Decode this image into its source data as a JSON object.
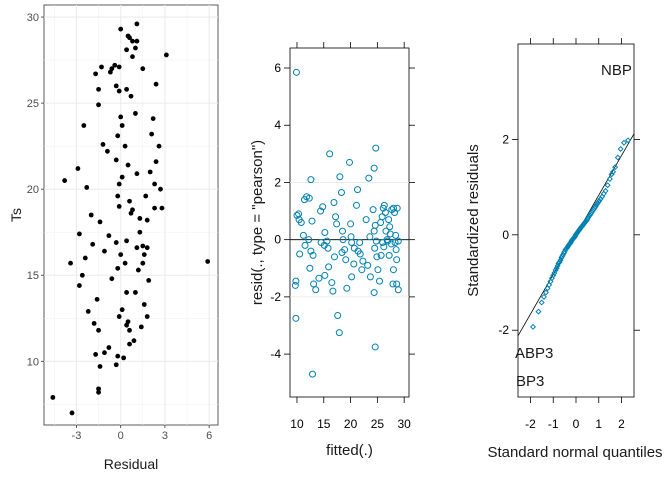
{
  "chart_data": [
    {
      "type": "scatter",
      "xlabel": "Residual",
      "ylabel": "Ts",
      "xlim": [
        -5.2,
        6.6
      ],
      "ylim": [
        6.3,
        30.7
      ],
      "xticks": [
        -3,
        0,
        3,
        6
      ],
      "yticks": [
        10,
        15,
        20,
        25,
        30
      ],
      "grid": true,
      "point_color": "#000000",
      "points": [
        [
          -4.6,
          7.9
        ],
        [
          -3.3,
          7.0
        ],
        [
          -3.8,
          20.5
        ],
        [
          -2.9,
          21.2
        ],
        [
          -2.5,
          23.7
        ],
        [
          -2.3,
          20.1
        ],
        [
          -2.8,
          17.4
        ],
        [
          -2.4,
          16.0
        ],
        [
          -1.9,
          16.8
        ],
        [
          -3.4,
          15.7
        ],
        [
          -2.6,
          15.0
        ],
        [
          -2.8,
          14.4
        ],
        [
          -2.0,
          18.5
        ],
        [
          -1.4,
          18.1
        ],
        [
          -2.2,
          12.9
        ],
        [
          -1.6,
          13.6
        ],
        [
          -1.8,
          12.2
        ],
        [
          -1.5,
          11.8
        ],
        [
          -1.7,
          10.4
        ],
        [
          -1.4,
          9.7
        ],
        [
          -1.1,
          10.5
        ],
        [
          -1.5,
          8.2
        ],
        [
          -1.5,
          8.4
        ],
        [
          -0.6,
          14.8
        ],
        [
          -0.8,
          10.8
        ],
        [
          -0.3,
          9.8
        ],
        [
          -1.7,
          26.7
        ],
        [
          -1.3,
          27.1
        ],
        [
          -1.5,
          25.8
        ],
        [
          -0.3,
          26.0
        ],
        [
          -0.6,
          27.0
        ],
        [
          -0.7,
          26.8
        ],
        [
          -0.4,
          27.2
        ],
        [
          -0.1,
          27.1
        ],
        [
          -1.5,
          24.9
        ],
        [
          -1.2,
          22.6
        ],
        [
          -0.9,
          22.2
        ],
        [
          -0.3,
          21.7
        ],
        [
          -0.2,
          19.6
        ],
        [
          -0.1,
          19.0
        ],
        [
          -1.1,
          16.4
        ],
        [
          -0.8,
          17.3
        ],
        [
          -0.3,
          16.9
        ],
        [
          0.0,
          16.2
        ],
        [
          0.3,
          15.7
        ],
        [
          -0.2,
          15.4
        ],
        [
          0.4,
          14.0
        ],
        [
          0.1,
          13.0
        ],
        [
          0.4,
          12.1
        ],
        [
          0.6,
          11.8
        ],
        [
          -0.1,
          12.6
        ],
        [
          0.5,
          12.3
        ],
        [
          -0.2,
          10.3
        ],
        [
          0.2,
          10.2
        ],
        [
          0.6,
          11.0
        ],
        [
          0.9,
          11.2
        ],
        [
          0.0,
          29.3
        ],
        [
          0.5,
          28.9
        ],
        [
          0.8,
          28.6
        ],
        [
          0.6,
          28.8
        ],
        [
          1.1,
          29.6
        ],
        [
          1.1,
          28.6
        ],
        [
          1.0,
          28.2
        ],
        [
          0.4,
          28.1
        ],
        [
          0.8,
          27.7
        ],
        [
          -0.1,
          25.7
        ],
        [
          0.4,
          25.8
        ],
        [
          0.7,
          25.4
        ],
        [
          1.0,
          24.4
        ],
        [
          0.0,
          24.2
        ],
        [
          0.1,
          23.7
        ],
        [
          -0.2,
          23.1
        ],
        [
          0.3,
          22.5
        ],
        [
          0.5,
          21.4
        ],
        [
          1.1,
          20.9
        ],
        [
          0.1,
          20.7
        ],
        [
          -0.1,
          20.3
        ],
        [
          0.6,
          19.3
        ],
        [
          0.8,
          18.8
        ],
        [
          1.3,
          18.3
        ],
        [
          0.7,
          18.6
        ],
        [
          1.3,
          17.5
        ],
        [
          1.5,
          16.7
        ],
        [
          1.1,
          16.6
        ],
        [
          0.4,
          17.0
        ],
        [
          1.8,
          16.6
        ],
        [
          1.5,
          15.7
        ],
        [
          1.2,
          15.3
        ],
        [
          1.9,
          14.7
        ],
        [
          1.0,
          14.0
        ],
        [
          1.6,
          13.3
        ],
        [
          1.8,
          12.6
        ],
        [
          1.4,
          12.0
        ],
        [
          2.2,
          24.1
        ],
        [
          2.1,
          23.2
        ],
        [
          2.6,
          22.5
        ],
        [
          2.4,
          21.6
        ],
        [
          2.0,
          21.0
        ],
        [
          2.3,
          20.3
        ],
        [
          1.7,
          19.6
        ],
        [
          2.7,
          20.0
        ],
        [
          2.3,
          18.9
        ],
        [
          1.8,
          18.2
        ],
        [
          2.4,
          26.1
        ],
        [
          1.5,
          27.0
        ],
        [
          3.1,
          27.8
        ],
        [
          2.8,
          18.9
        ],
        [
          1.6,
          16.2
        ],
        [
          5.9,
          15.8
        ]
      ]
    },
    {
      "type": "scatter",
      "xlabel": "fitted(.)",
      "ylabel": "resid(., type = \"pearson\")",
      "xlim": [
        8.7,
        30.9
      ],
      "ylim": [
        -5.5,
        6.7
      ],
      "xticks": [
        10,
        15,
        20,
        25,
        30
      ],
      "yticks": [
        -4,
        -2,
        0,
        2,
        4,
        6
      ],
      "hline": 0,
      "point_color": "#0080b0",
      "points": [
        [
          9.9,
          5.85
        ],
        [
          9.8,
          -1.45
        ],
        [
          9.7,
          -1.6
        ],
        [
          9.8,
          -2.75
        ],
        [
          10.5,
          -0.5
        ],
        [
          10.0,
          0.85
        ],
        [
          10.4,
          0.7
        ],
        [
          10.8,
          0.6
        ],
        [
          11.2,
          0.15
        ],
        [
          11.5,
          -0.2
        ],
        [
          10.3,
          0.9
        ],
        [
          11.8,
          1.5
        ],
        [
          11.4,
          1.4
        ],
        [
          12.3,
          1.45
        ],
        [
          12.6,
          2.1
        ],
        [
          12.8,
          0.65
        ],
        [
          12.2,
          0.0
        ],
        [
          12.6,
          -0.4
        ],
        [
          13.0,
          -0.55
        ],
        [
          12.4,
          -1.0
        ],
        [
          13.1,
          -1.55
        ],
        [
          14.1,
          -1.35
        ],
        [
          13.5,
          -1.75
        ],
        [
          12.9,
          -4.7
        ],
        [
          14.4,
          1.0
        ],
        [
          14.8,
          1.15
        ],
        [
          15.2,
          0.25
        ],
        [
          15.1,
          -0.2
        ],
        [
          14.5,
          -0.1
        ],
        [
          15.6,
          -0.05
        ],
        [
          16.1,
          3.0
        ],
        [
          15.8,
          -0.3
        ],
        [
          15.9,
          -0.95
        ],
        [
          15.2,
          -1.25
        ],
        [
          16.5,
          -1.5
        ],
        [
          16.7,
          -1.8
        ],
        [
          16.9,
          1.3
        ],
        [
          17.2,
          0.8
        ],
        [
          17.4,
          0.55
        ],
        [
          17.0,
          -0.6
        ],
        [
          17.6,
          -2.65
        ],
        [
          17.9,
          -3.25
        ],
        [
          18.0,
          2.2
        ],
        [
          18.3,
          1.65
        ],
        [
          18.5,
          0.3
        ],
        [
          18.6,
          0.0
        ],
        [
          18.4,
          -0.45
        ],
        [
          18.9,
          -0.35
        ],
        [
          19.1,
          -0.7
        ],
        [
          19.3,
          -1.7
        ],
        [
          19.8,
          2.7
        ],
        [
          20.0,
          0.55
        ],
        [
          20.1,
          0.1
        ],
        [
          20.2,
          -0.1
        ],
        [
          20.7,
          -0.3
        ],
        [
          20.6,
          -0.85
        ],
        [
          20.2,
          -1.3
        ],
        [
          21.3,
          1.75
        ],
        [
          21.1,
          1.2
        ],
        [
          21.4,
          -0.4
        ],
        [
          21.7,
          -0.1
        ],
        [
          21.8,
          -0.5
        ],
        [
          22.1,
          -1.05
        ],
        [
          22.3,
          -0.75
        ],
        [
          22.9,
          0.7
        ],
        [
          23.4,
          2.15
        ],
        [
          23.6,
          0.1
        ],
        [
          23.2,
          -0.9
        ],
        [
          23.7,
          -1.3
        ],
        [
          24.2,
          1.05
        ],
        [
          24.4,
          2.5
        ],
        [
          24.7,
          3.2
        ],
        [
          24.6,
          0.5
        ],
        [
          24.8,
          -0.05
        ],
        [
          24.5,
          -0.3
        ],
        [
          24.9,
          -0.6
        ],
        [
          25.1,
          -1.05
        ],
        [
          25.4,
          -1.45
        ],
        [
          25.6,
          0.6
        ],
        [
          25.9,
          0.8
        ],
        [
          26.0,
          -0.1
        ],
        [
          25.7,
          -0.55
        ],
        [
          24.4,
          -1.85
        ],
        [
          24.6,
          -3.75
        ],
        [
          26.1,
          1.1
        ],
        [
          26.3,
          1.2
        ],
        [
          26.5,
          0.95
        ],
        [
          26.6,
          0.3
        ],
        [
          26.8,
          0.0
        ],
        [
          26.9,
          -0.05
        ],
        [
          26.2,
          -0.25
        ],
        [
          27.1,
          0.7
        ],
        [
          27.3,
          0.45
        ],
        [
          27.4,
          0.2
        ],
        [
          27.7,
          1.05
        ],
        [
          27.6,
          -0.15
        ],
        [
          27.2,
          -0.55
        ],
        [
          28.0,
          1.1
        ],
        [
          28.2,
          0.95
        ],
        [
          28.4,
          0.15
        ],
        [
          28.3,
          -0.1
        ],
        [
          28.5,
          -0.35
        ],
        [
          28.6,
          -0.7
        ],
        [
          28.0,
          -1.05
        ],
        [
          28.7,
          1.1
        ],
        [
          28.9,
          -0.05
        ],
        [
          28.6,
          -1.55
        ],
        [
          28.9,
          -1.75
        ],
        [
          27.9,
          -1.55
        ],
        [
          24.4,
          0.3
        ]
      ]
    },
    {
      "type": "scatter",
      "xlabel": "Standard normal quantiles",
      "ylabel": "Standardized residuals",
      "xlim": [
        -2.55,
        2.55
      ],
      "ylim": [
        -3.4,
        4.0
      ],
      "xticks": [
        -2,
        -1,
        0,
        1,
        2
      ],
      "yticks": [
        -2,
        0,
        2
      ],
      "reference_line": {
        "intercept": 0.0,
        "slope": 0.83
      },
      "point_color": "#0080b0",
      "annotations": [
        "NBP",
        "ABP3",
        "BP3"
      ],
      "points": [
        [
          -1.89,
          -1.93
        ],
        [
          -1.65,
          -1.61
        ],
        [
          -1.51,
          -1.42
        ],
        [
          -1.41,
          -1.3
        ],
        [
          -1.32,
          -1.21
        ],
        [
          -1.25,
          -1.12
        ],
        [
          -1.18,
          -1.05
        ],
        [
          -1.12,
          -0.98
        ],
        [
          -1.06,
          -0.91
        ],
        [
          -1.0,
          -0.85
        ],
        [
          -0.95,
          -0.8
        ],
        [
          -0.9,
          -0.74
        ],
        [
          -0.85,
          -0.7
        ],
        [
          -0.81,
          -0.65
        ],
        [
          -0.77,
          -0.6
        ],
        [
          -0.72,
          -0.57
        ],
        [
          -0.68,
          -0.53
        ],
        [
          -0.64,
          -0.48
        ],
        [
          -0.61,
          -0.45
        ],
        [
          -0.57,
          -0.42
        ],
        [
          -0.53,
          -0.38
        ],
        [
          -0.5,
          -0.35
        ],
        [
          -0.46,
          -0.31
        ],
        [
          -0.43,
          -0.29
        ],
        [
          -0.39,
          -0.27
        ],
        [
          -0.36,
          -0.25
        ],
        [
          -0.33,
          -0.22
        ],
        [
          -0.29,
          -0.2
        ],
        [
          -0.26,
          -0.18
        ],
        [
          -0.23,
          -0.16
        ],
        [
          -0.2,
          -0.13
        ],
        [
          -0.17,
          -0.11
        ],
        [
          -0.14,
          -0.09
        ],
        [
          -0.1,
          -0.07
        ],
        [
          -0.07,
          -0.05
        ],
        [
          -0.04,
          -0.03
        ],
        [
          -0.01,
          0.0
        ],
        [
          0.02,
          0.02
        ],
        [
          0.05,
          0.04
        ],
        [
          0.08,
          0.06
        ],
        [
          0.11,
          0.08
        ],
        [
          0.14,
          0.1
        ],
        [
          0.17,
          0.12
        ],
        [
          0.2,
          0.14
        ],
        [
          0.23,
          0.16
        ],
        [
          0.27,
          0.18
        ],
        [
          0.3,
          0.2
        ],
        [
          0.33,
          0.22
        ],
        [
          0.36,
          0.24
        ],
        [
          0.4,
          0.26
        ],
        [
          0.43,
          0.28
        ],
        [
          0.47,
          0.3
        ],
        [
          0.5,
          0.33
        ],
        [
          0.54,
          0.36
        ],
        [
          0.57,
          0.39
        ],
        [
          0.61,
          0.41
        ],
        [
          0.65,
          0.44
        ],
        [
          0.69,
          0.47
        ],
        [
          0.73,
          0.5
        ],
        [
          0.77,
          0.53
        ],
        [
          0.81,
          0.56
        ],
        [
          0.86,
          0.59
        ],
        [
          0.91,
          0.63
        ],
        [
          0.96,
          0.67
        ],
        [
          1.02,
          0.71
        ],
        [
          1.08,
          0.75
        ],
        [
          1.15,
          0.8
        ],
        [
          1.22,
          0.86
        ],
        [
          1.3,
          0.92
        ],
        [
          1.39,
          1.04
        ],
        [
          1.49,
          1.17
        ],
        [
          1.57,
          1.27
        ],
        [
          1.63,
          1.32
        ],
        [
          1.72,
          1.42
        ],
        [
          1.84,
          1.62
        ],
        [
          1.96,
          1.8
        ],
        [
          2.11,
          1.93
        ],
        [
          2.29,
          1.98
        ]
      ]
    }
  ]
}
